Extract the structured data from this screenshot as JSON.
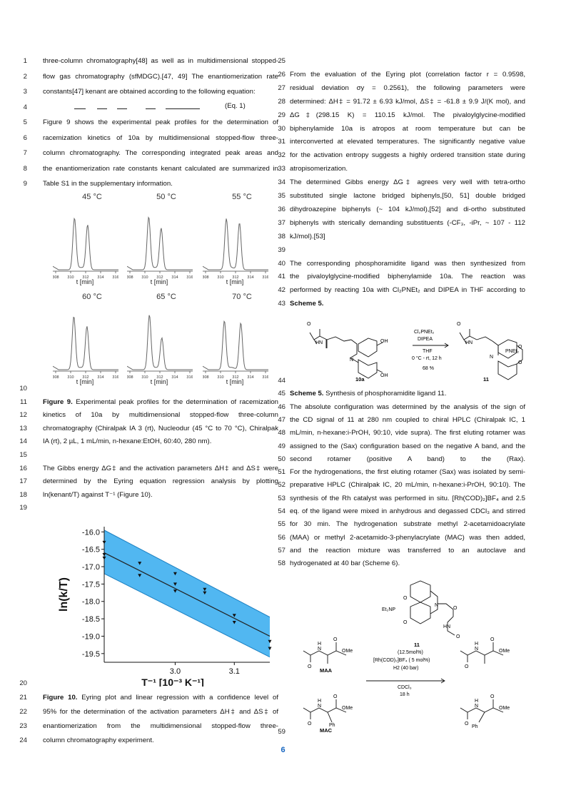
{
  "left_lines": [
    {
      "n": "1",
      "t": "three-column chromatography[48] as well as in multidimensional stopped-"
    },
    {
      "n": "2",
      "t": "flow gas chromatography (sfMDGC).[47, 49] The enantiomerization rate"
    },
    {
      "n": "3",
      "t": "constants[47] kenant are obtained according to the following equation:"
    },
    {
      "n": "4",
      "t": ""
    },
    {
      "n": "5",
      "t": "Figure 9 shows the experimental peak profiles for the determination of"
    },
    {
      "n": "6",
      "t": "racemization kinetics of 10a by multidimensional stopped-flow three-"
    },
    {
      "n": "7",
      "t": "column chromatography. The corresponding integrated peak areas and"
    },
    {
      "n": "8",
      "t": "the enantiomerization rate constants kenant calculated are summarized in"
    },
    {
      "n": "9",
      "t": "Table S1 in the supplementary information."
    }
  ],
  "equation_label": "(Eq. 1)",
  "peak_panels": [
    {
      "temp": "45 °C",
      "xlabel": "t [min]"
    },
    {
      "temp": "50 °C",
      "xlabel": "t [min]"
    },
    {
      "temp": "55 °C",
      "xlabel": "t [min]"
    },
    {
      "temp": "60 °C",
      "xlabel": "t [min]"
    },
    {
      "temp": "65 °C",
      "xlabel": "t [min]"
    },
    {
      "temp": "70 °C",
      "xlabel": "t [min]"
    }
  ],
  "peak_ticks": [
    "308",
    "310",
    "312",
    "314",
    "316"
  ],
  "left_lines2": [
    {
      "n": "10",
      "t": ""
    },
    {
      "n": "11",
      "t": "Figure 9. Experimental peak profiles for the determination of racemization"
    },
    {
      "n": "12",
      "t": "kinetics of 10a by multidimensional stopped-flow three-column"
    },
    {
      "n": "13",
      "t": "chromatography (Chiralpak IA 3 (rt), Nucleodur (45 °C to 70 °C), Chiralpak"
    },
    {
      "n": "14",
      "t": "IA (rt), 2 µL, 1 mL/min, n-hexane:EtOH, 60:40, 280 nm)."
    },
    {
      "n": "15",
      "t": ""
    },
    {
      "n": "16",
      "t": "The Gibbs energy ΔG‡ and the activation parameters ΔH‡ and ΔS‡ were"
    },
    {
      "n": "17",
      "t": "determined by the Eyring equation regression analysis by plotting"
    },
    {
      "n": "18",
      "t": "ln(kenant/T) against T⁻¹ (Figure 10)."
    },
    {
      "n": "19",
      "t": ""
    }
  ],
  "chart_data": {
    "type": "scatter",
    "xlabel": "T⁻¹ [10⁻³ K⁻¹]",
    "ylabel": "ln(k/T)",
    "xlim": [
      2.88,
      3.16
    ],
    "ylim": [
      -19.75,
      -15.85
    ],
    "xticks": [
      "3.0",
      "3.1"
    ],
    "yticks": [
      "-16.0",
      "-16.5",
      "-17.0",
      "-17.5",
      "-18.0",
      "-18.5",
      "-19.0",
      "-19.5"
    ],
    "points": [
      {
        "x": 2.88,
        "y": -16.3
      },
      {
        "x": 2.88,
        "y": -16.65
      },
      {
        "x": 2.88,
        "y": -16.75
      },
      {
        "x": 2.94,
        "y": -16.9
      },
      {
        "x": 2.94,
        "y": -17.25
      },
      {
        "x": 3.0,
        "y": -17.2
      },
      {
        "x": 3.0,
        "y": -17.5
      },
      {
        "x": 3.0,
        "y": -17.7
      },
      {
        "x": 3.05,
        "y": -17.65
      },
      {
        "x": 3.05,
        "y": -17.75
      },
      {
        "x": 3.1,
        "y": -18.4
      },
      {
        "x": 3.1,
        "y": -18.6
      },
      {
        "x": 3.16,
        "y": -19.15
      },
      {
        "x": 3.16,
        "y": -19.35
      }
    ],
    "fit": {
      "x": [
        2.88,
        3.16
      ],
      "y": [
        -16.6,
        -19.0
      ]
    },
    "band_upper": {
      "x": [
        2.88,
        3.16
      ],
      "y": [
        -15.95,
        -18.45
      ]
    },
    "band_lower": {
      "x": [
        2.88,
        3.16
      ],
      "y": [
        -17.2,
        -19.6
      ]
    },
    "band_color": "#33aaee",
    "line_color": "#222222"
  },
  "left_lines3": [
    {
      "n": "20",
      "t": ""
    },
    {
      "n": "21",
      "t": "Figure 10. Eyring plot and linear regression with a confidence level of"
    },
    {
      "n": "22",
      "t": "95% for the determination of the activation parameters ΔH‡ and ΔS‡ of"
    },
    {
      "n": "23",
      "t": "enantiomerization from the multidimensional stopped-flow three-"
    },
    {
      "n": "24",
      "t": "column chromatography experiment."
    }
  ],
  "right_lines": [
    {
      "n": "25",
      "t": ""
    },
    {
      "n": "26",
      "t": "From the evaluation of the Eyring plot (correlation factor r = 0.9598,"
    },
    {
      "n": "27",
      "t": "residual deviation σy = 0.2561), the following parameters were"
    },
    {
      "n": "28",
      "t": "determined: ΔH‡ = 91.72 ± 6.93 kJ/mol, ΔS‡ = -61.8 ± 9.9 J/(K mol), and"
    },
    {
      "n": "29",
      "t": "ΔG‡(298.15 K) = 110.15 kJ/mol. The pivaloylglycine-modified"
    },
    {
      "n": "30",
      "t": "biphenylamide 10a is atropos at room temperature but can be"
    },
    {
      "n": "31",
      "t": "interconverted at elevated temperatures. The significantly negative value"
    },
    {
      "n": "32",
      "t": "for the activation entropy suggests a highly ordered transition state during"
    },
    {
      "n": "33",
      "t": "atropisomerization."
    },
    {
      "n": "34",
      "t": "The determined Gibbs energy ΔG‡ agrees very well with tetra-ortho"
    },
    {
      "n": "35",
      "t": "substituted single lactone bridged biphenyls,[50, 51] double bridged"
    },
    {
      "n": "36",
      "t": "dihydroazepine biphenyls (~ 104 kJ/mol),[52] and di-ortho substituted"
    },
    {
      "n": "37",
      "t": "biphenyls with sterically demanding substituents (-CF₃, -iPr, ~ 107 - 112"
    },
    {
      "n": "38",
      "t": "kJ/mol).[53]"
    },
    {
      "n": "39",
      "t": ""
    },
    {
      "n": "40",
      "t": "The corresponding phosphoramidite ligand was then synthesized from"
    },
    {
      "n": "41",
      "t": "the pivaloylglycine-modified biphenylamide 10a. The reaction was"
    },
    {
      "n": "42",
      "t": "performed by reacting 10a with Cl₂PNEt₂ and DIPEA in THF according to"
    },
    {
      "n": "43",
      "t": "Scheme 5."
    }
  ],
  "scheme5": {
    "reagents": [
      "Cl₂PNEt₂",
      "DIPEA"
    ],
    "conditions": [
      "THF",
      "0 °C - rt, 12 h"
    ],
    "yield": "68 %",
    "start": "10a",
    "product": "11",
    "labels": {
      "OH": "OH",
      "HN": "HN",
      "N": "N",
      "O": "O",
      "PNEt2": "PNEt₂"
    }
  },
  "right_lines2": [
    {
      "n": "44",
      "t": ""
    },
    {
      "n": "45",
      "t": "Scheme 5. Synthesis of phosphoramidite ligand 11."
    },
    {
      "n": "46",
      "t": "The absolute configuration was determined by the analysis of the sign of"
    },
    {
      "n": "47",
      "t": "the CD signal of 11 at 280 nm coupled to chiral HPLC (Chiralpak IC, 1"
    },
    {
      "n": "48",
      "t": "mL/min, n-hexane:i-PrOH, 90:10, vide supra). The first eluting rotamer was"
    },
    {
      "n": "49",
      "t": "assigned to the (Sax) configuration based on the negative A band, and the"
    },
    {
      "n": "50",
      "t": "second rotamer (positive A band) to the (Rax)."
    },
    {
      "n": "51",
      "t": "For the hydrogenations, the first eluting rotamer (Sax) was isolated by semi-"
    },
    {
      "n": "52",
      "t": "preparative HPLC (Chiralpak IC, 20 mL/min, n-hexane:i-PrOH, 90:10). The"
    },
    {
      "n": "53",
      "t": "synthesis of the Rh catalyst was performed in situ. [Rh(COD)₂]BF₄ and 2.5"
    },
    {
      "n": "54",
      "t": "eq. of the ligand were mixed in anhydrous and degassed CDCl₃ and stirred"
    },
    {
      "n": "55",
      "t": "for 30 min. The hydrogenation substrate methyl 2-acetamidoacrylate"
    },
    {
      "n": "56",
      "t": "(MAA) or methyl 2-acetamido-3-phenylacrylate (MAC) was then added,"
    },
    {
      "n": "57",
      "t": "and the reaction mixture was transferred to an autoclave and"
    },
    {
      "n": "58",
      "t": "hydrogenated at 40 bar (Scheme 6)."
    }
  ],
  "scheme6": {
    "catalyst_label": "11",
    "catalyst_loading": "(12.5mol%)",
    "rh": "[Rh(COD)₂]BF₄ ( 5 mol%)",
    "h2": "H2 (40 bar)",
    "solvent": "CDCl₃",
    "time": "18 h",
    "maa": "MAA",
    "mac": "MAC",
    "ome": "OMe",
    "ph": "Ph",
    "et2np": "Et₂NP"
  },
  "line59": "59",
  "page_number": "6"
}
